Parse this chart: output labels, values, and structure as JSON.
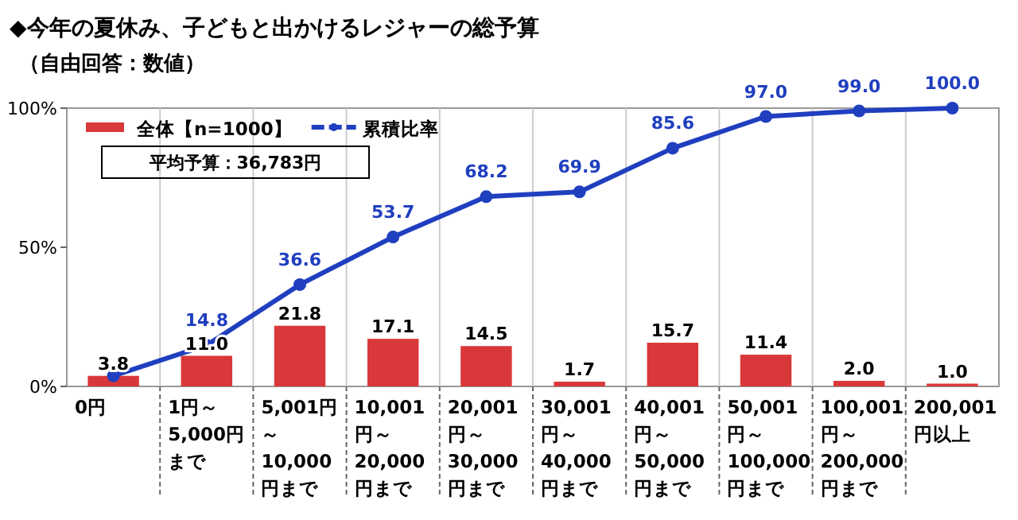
{
  "chart_data": {
    "type": "bar",
    "title": "◆今年の夏休み、子どもと出かけるレジャーの総予算",
    "subtitle": "（自由回答：数値）",
    "categories": [
      "0円",
      "1円～5,000円まで",
      "5,001円～10,000円まで",
      "10,001円～20,000円まで",
      "20,001円～30,000円まで",
      "30,001円～40,000円まで",
      "40,001円～50,000円まで",
      "50,001円～100,000円まで",
      "100,001円～200,000円まで",
      "200,001円以上"
    ],
    "series": [
      {
        "name": "全体【n=1000】",
        "color": "#d9383a",
        "values": [
          3.8,
          11.0,
          21.8,
          17.1,
          14.5,
          1.7,
          15.7,
          11.4,
          2.0,
          1.0
        ],
        "value_labels": [
          "3.8",
          "11.0",
          "21.8",
          "17.1",
          "14.5",
          "1.7",
          "15.7",
          "11.4",
          "2.0",
          "1.0"
        ]
      },
      {
        "name": "累積比率",
        "type": "line",
        "color": "#1f3fbf",
        "marker": "circle",
        "line_style": "solid",
        "values": [
          3.8,
          14.8,
          36.6,
          53.7,
          68.2,
          69.9,
          85.6,
          97.0,
          99.0,
          100.0
        ],
        "value_labels": [
          null,
          "14.8",
          "36.6",
          "53.7",
          "68.2",
          "69.9",
          "85.6",
          "97.0",
          "99.0",
          "100.0"
        ]
      }
    ],
    "ylim": [
      0,
      100
    ],
    "yticks": [
      {
        "value": 0,
        "label": "0%"
      },
      {
        "value": 50,
        "label": "50%"
      },
      {
        "value": 100,
        "label": "100%"
      }
    ],
    "grid": "x",
    "legend": "top left",
    "annotations": [
      "平均予算：36,783円"
    ]
  }
}
